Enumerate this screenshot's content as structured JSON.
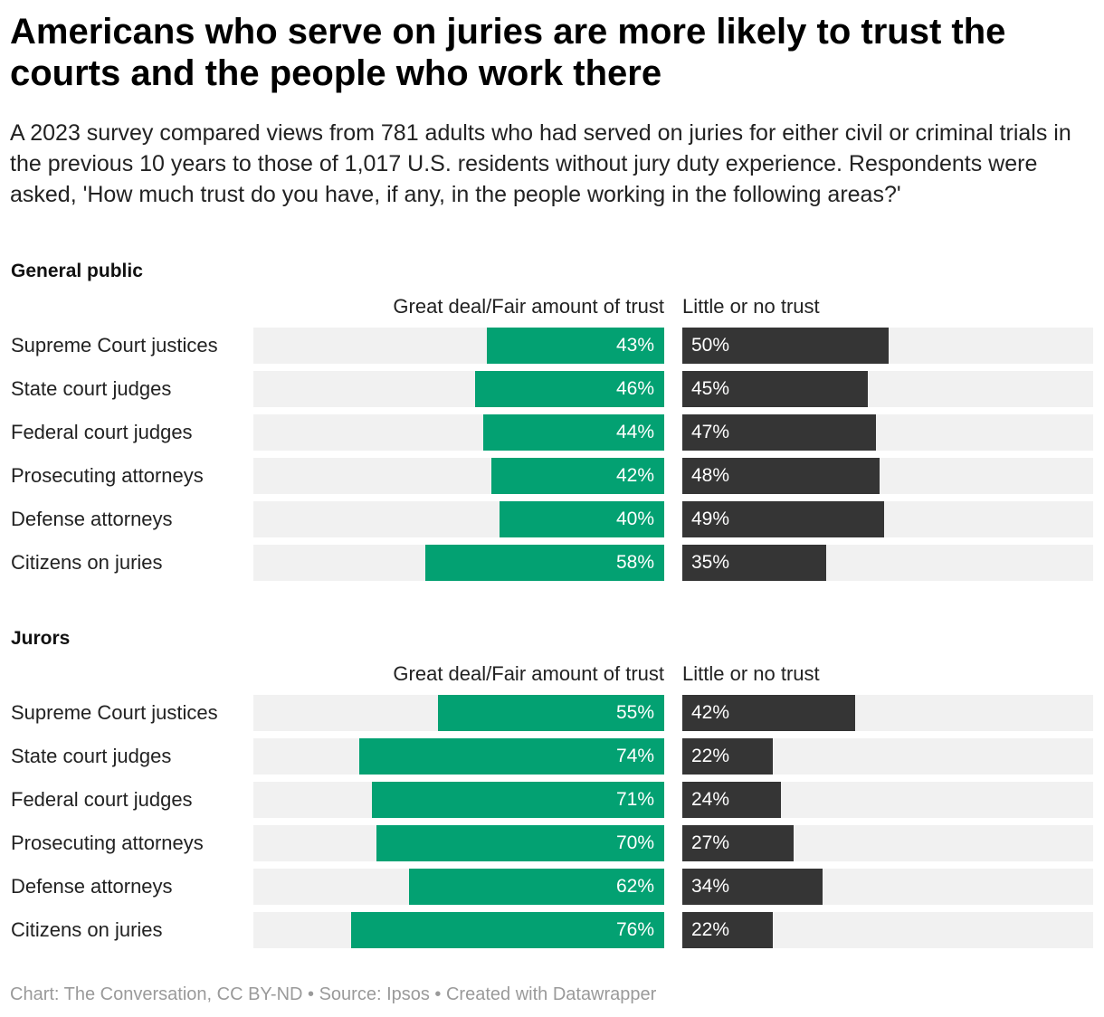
{
  "title": "Americans who serve on juries are more likely to trust the courts and the people who work there",
  "subtitle": "A 2023 survey compared views from 781 adults who had served on juries for either civil or criminal trials in the previous 10 years to those of 1,017 U.S. residents without jury duty experience. Respondents were asked, 'How much trust do you have, if any, in the people working in the following areas?'",
  "footer": "Chart: The Conversation, CC BY-ND • Source: Ipsos • Created with Datawrapper",
  "colors": {
    "trust": "#03a172",
    "no_trust": "#353535",
    "track": "#f1f1f1"
  },
  "chart_data": [
    {
      "type": "bar",
      "title": "General public",
      "categories": [
        "Supreme Court justices",
        "State court judges",
        "Federal court judges",
        "Prosecuting attorneys",
        "Defense attorneys",
        "Citizens on juries"
      ],
      "series": [
        {
          "name": "Great deal/Fair amount of trust",
          "values": [
            43,
            46,
            44,
            42,
            40,
            58
          ],
          "labels": [
            "43%",
            "46%",
            "44%",
            "42%",
            "40%",
            "58%"
          ]
        },
        {
          "name": "Little or no trust",
          "values": [
            50,
            45,
            47,
            48,
            49,
            35
          ],
          "labels": [
            "50%",
            "45%",
            "47%",
            "48%",
            "49%",
            "35%"
          ]
        }
      ],
      "xlim": [
        0,
        100
      ]
    },
    {
      "type": "bar",
      "title": "Jurors",
      "categories": [
        "Supreme Court justices",
        "State court judges",
        "Federal court judges",
        "Prosecuting attorneys",
        "Defense attorneys",
        "Citizens on juries"
      ],
      "series": [
        {
          "name": "Great deal/Fair amount of trust",
          "values": [
            55,
            74,
            71,
            70,
            62,
            76
          ],
          "labels": [
            "55%",
            "74%",
            "71%",
            "70%",
            "62%",
            "76%"
          ]
        },
        {
          "name": "Little or no trust",
          "values": [
            42,
            22,
            24,
            27,
            34,
            22
          ],
          "labels": [
            "42%",
            "22%",
            "24%",
            "27%",
            "34%",
            "22%"
          ]
        }
      ],
      "xlim": [
        0,
        100
      ]
    }
  ]
}
